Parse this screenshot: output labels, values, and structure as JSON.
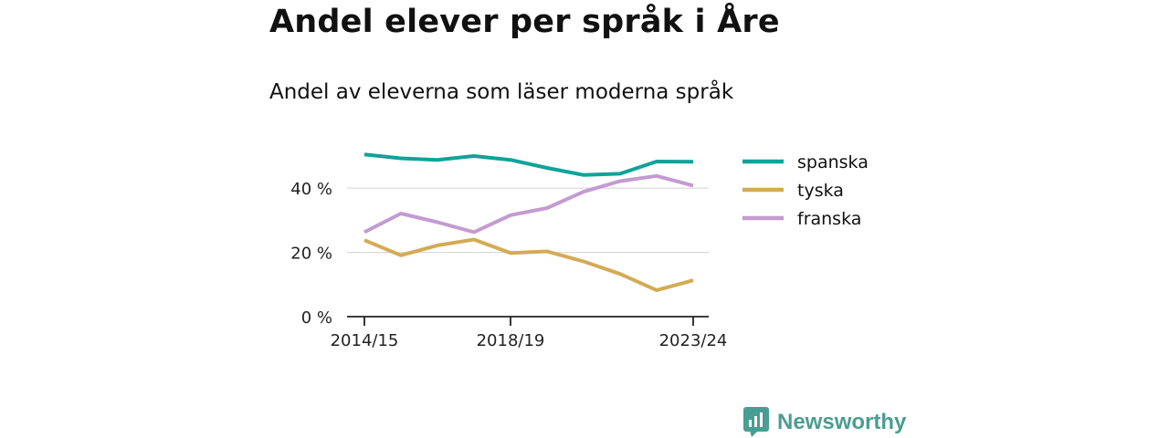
{
  "title": "Andel elever per språk i Åre",
  "subtitle": "Andel av eleverna som läser moderna språk",
  "brand": {
    "name": "Newsworthy",
    "color": "#4a9d93"
  },
  "chart_data": {
    "type": "line",
    "title": "Andel elever per språk i Åre",
    "subtitle": "Andel av eleverna som läser moderna språk",
    "x": [
      "2014/15",
      "2015/16",
      "2016/17",
      "2017/18",
      "2018/19",
      "2019/20",
      "2020/21",
      "2021/22",
      "2022/23",
      "2023/24"
    ],
    "x_tick_labels": [
      "2014/15",
      "2018/19",
      "2023/24"
    ],
    "y_ticks": [
      0,
      20,
      40
    ],
    "y_tick_labels": [
      "0 %",
      "20 %",
      "40 %"
    ],
    "ylim": [
      0,
      50
    ],
    "grid": "horizontal",
    "legend_position": "right",
    "series": [
      {
        "name": "spanska",
        "color": "#0fa39a",
        "values": [
          50.5,
          49.3,
          48.8,
          50.0,
          48.8,
          46.3,
          44.1,
          44.5,
          48.3,
          48.2
        ]
      },
      {
        "name": "tyska",
        "color": "#d4ab55",
        "values": [
          23.8,
          19.1,
          22.2,
          24.0,
          19.8,
          20.3,
          17.2,
          13.3,
          8.2,
          11.3
        ]
      },
      {
        "name": "franska",
        "color": "#c39bd1",
        "values": [
          26.3,
          32.1,
          29.4,
          26.3,
          31.6,
          33.8,
          38.9,
          42.2,
          43.8,
          40.8
        ]
      }
    ]
  }
}
